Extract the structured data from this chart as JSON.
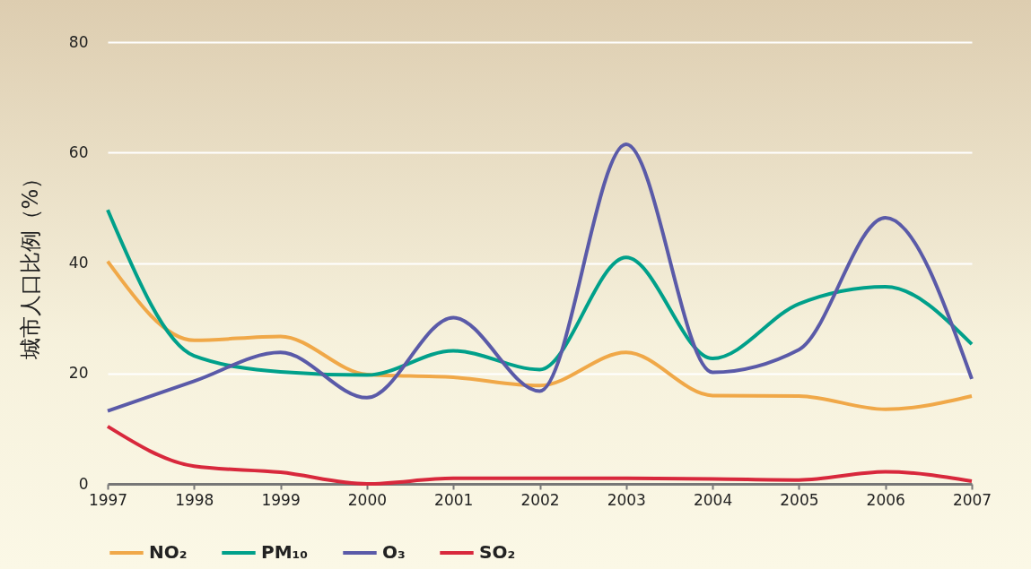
{
  "chart_data": {
    "type": "line",
    "ylabel": "城市人口比例（%）",
    "x": [
      1997,
      1998,
      1999,
      2000,
      2001,
      2002,
      2003,
      2004,
      2005,
      2006,
      2007
    ],
    "xlim": [
      1997,
      2007
    ],
    "xticks": [
      1997,
      1998,
      1999,
      2000,
      2001,
      2002,
      2003,
      2004,
      2005,
      2006,
      2007
    ],
    "ylim": [
      0,
      80
    ],
    "yticks": [
      0,
      20,
      40,
      60,
      80
    ],
    "grid": "y",
    "legend": "bottom",
    "marker": "none",
    "line_style": "solid",
    "series": [
      {
        "name": "NO₂",
        "color": "#f0a848",
        "values": [
          40.3,
          26,
          26.7,
          19.8,
          19.3,
          17.8,
          23.8,
          16,
          15.9,
          13.5,
          15.9
        ]
      },
      {
        "name": "PM₁₀",
        "color": "#00a08a",
        "values": [
          49.6,
          23.2,
          20.3,
          19.7,
          24.1,
          20.7,
          41,
          22.7,
          32.6,
          35.7,
          25.3
        ]
      },
      {
        "name": "O₃",
        "color": "#5a5aa8",
        "values": [
          13.2,
          18.6,
          23.8,
          15.6,
          30.1,
          16.8,
          61.5,
          20.2,
          24.3,
          48.2,
          19
        ]
      },
      {
        "name": "SO₂",
        "color": "#d8283c",
        "values": [
          10.4,
          3.2,
          2.1,
          0,
          1,
          1,
          1,
          0.9,
          0.7,
          2.2,
          0.5
        ]
      }
    ]
  }
}
